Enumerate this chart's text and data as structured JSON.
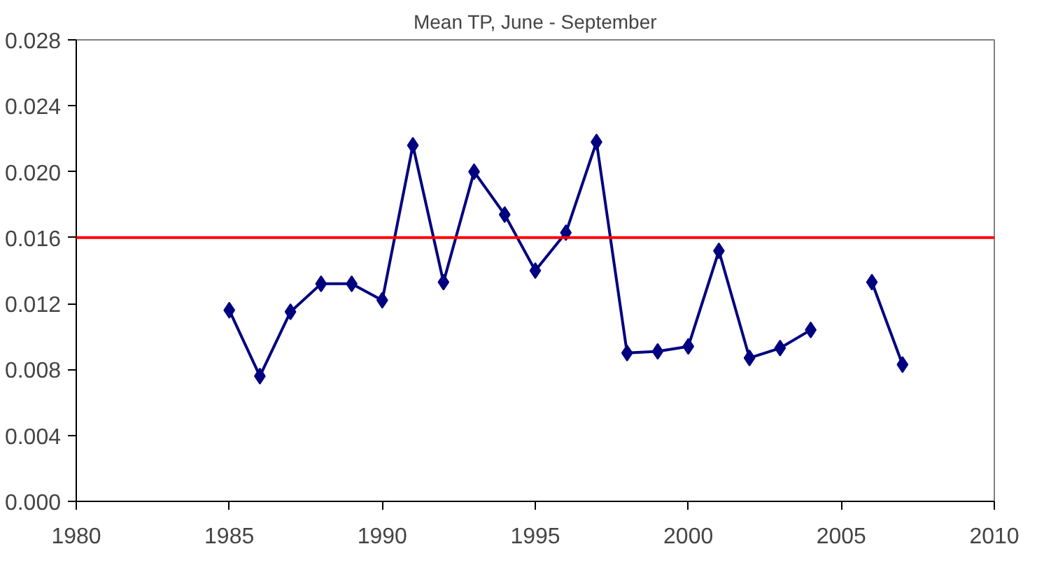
{
  "chart_data": {
    "type": "line",
    "title": "Mean TP, June - September",
    "x": [
      1985,
      1986,
      1987,
      1988,
      1989,
      1990,
      1991,
      1992,
      1993,
      1994,
      1995,
      1996,
      1997,
      1998,
      1999,
      2000,
      2001,
      2002,
      2003,
      2004,
      2005,
      2006,
      2007
    ],
    "series": [
      {
        "color": "#000080",
        "values": [
          0.0116,
          0.0076,
          0.0115,
          0.0132,
          0.0132,
          0.0122,
          0.0216,
          0.0133,
          0.02,
          0.0174,
          0.014,
          0.0163,
          0.0218,
          0.009,
          0.0091,
          0.0094,
          0.0152,
          0.0087,
          0.0093,
          0.0104,
          null,
          0.0133,
          0.0083
        ]
      }
    ],
    "xlim": [
      1980,
      2010
    ],
    "xticks": [
      1980,
      1985,
      1990,
      1995,
      2000,
      2005,
      2010
    ],
    "ylim": [
      0,
      0.028
    ],
    "yticks": [
      {
        "value": 0,
        "label": "0.000"
      },
      {
        "value": 0.004,
        "label": "0.004"
      },
      {
        "value": 0.008,
        "label": "0.008"
      },
      {
        "value": 0.012,
        "label": "0.012"
      },
      {
        "value": 0.016,
        "label": "0.016"
      },
      {
        "value": 0.02,
        "label": "0.020"
      },
      {
        "value": 0.024,
        "label": "0.024"
      },
      {
        "value": 0.028,
        "label": "0.028"
      }
    ],
    "ref_lines": [
      {
        "axis": "y",
        "value": 0.016,
        "color": "#ff0000"
      }
    ],
    "marker": "diamond",
    "grid": false
  }
}
